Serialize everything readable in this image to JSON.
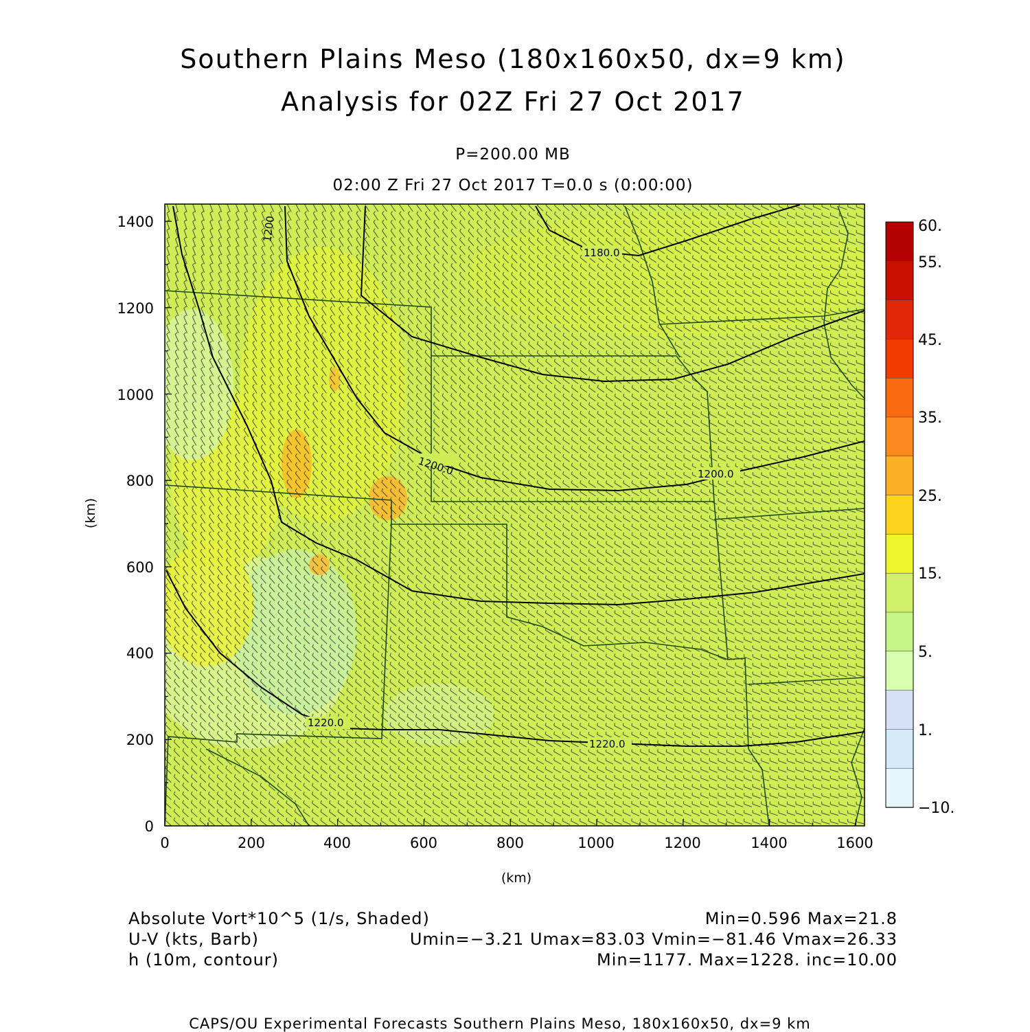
{
  "title": {
    "line1": "Southern Plains Meso (180x160x50, dx=9 km)",
    "line2": "Analysis for 02Z Fri 27 Oct 2017"
  },
  "subtitle": {
    "level": "P=200.00 MB",
    "time": "02:00 Z Fri 27 Oct 2017    T=0.0 s (0:00:00)"
  },
  "axes": {
    "x_label": "(km)",
    "y_label": "(km)",
    "x_range": [
      0,
      1620
    ],
    "y_range": [
      0,
      1440
    ],
    "x_ticks": [
      "0",
      "200",
      "400",
      "600",
      "800",
      "1000",
      "1200",
      "1400",
      "1600"
    ],
    "y_ticks": [
      "0",
      "200",
      "400",
      "600",
      "800",
      "1000",
      "1200",
      "1400"
    ]
  },
  "colorbar": {
    "labels": [
      "60.",
      "55.",
      "45.",
      "35.",
      "25.",
      "15.",
      "5.",
      "1.",
      "−10."
    ],
    "colors": [
      "#b30000",
      "#c91000",
      "#e02808",
      "#f03c00",
      "#f86a10",
      "#fa8a1e",
      "#fcb028",
      "#fcd41e",
      "#eef52a",
      "#cff06a",
      "#c6f587",
      "#d6ffb0",
      "#d6e0f8",
      "#d4ecfa",
      "#e6f6fd"
    ]
  },
  "contours": [
    {
      "label": "1180.0"
    },
    {
      "label": "1200.0"
    },
    {
      "label": "1200.0"
    },
    {
      "label": "1220.0"
    },
    {
      "label": "1220.0"
    },
    {
      "label": "1200"
    }
  ],
  "legend": {
    "line1_left": "Absolute Vort*10^5 (1/s, Shaded)",
    "line1_right": "Min=0.596  Max=21.8",
    "line2_left": "U-V (kts, Barb)",
    "line2_right": "Umin=−3.21  Umax=83.03  Vmin=−81.46  Vmax=26.33",
    "line3_left": "h (10m, contour)",
    "line3_right": "Min=1177.  Max=1228.  inc=10.00"
  },
  "credit": "CAPS/OU Experimental Forecasts   Southern Plains Meso, 180x160x50, dx=9 km",
  "map_colors": {
    "base": "#cfee55",
    "boundary": "#1e4a14",
    "contour": "#000000",
    "barb": "#2a2a2a"
  }
}
